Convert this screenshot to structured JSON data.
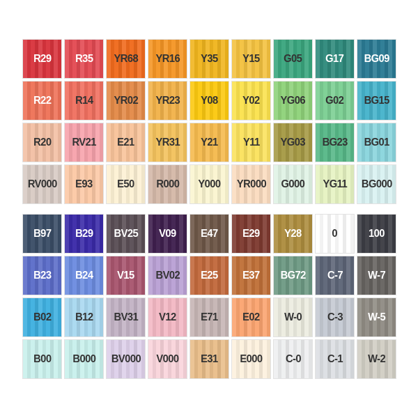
{
  "blocks": [
    {
      "rows": [
        [
          {
            "label": "R29",
            "color": "#d9343d",
            "text": "#ffffff"
          },
          {
            "label": "R35",
            "color": "#e34a52",
            "text": "#ffffff"
          },
          {
            "label": "YR68",
            "color": "#f06a1c",
            "text": "#333333"
          },
          {
            "label": "YR16",
            "color": "#f59625",
            "text": "#333333"
          },
          {
            "label": "Y35",
            "color": "#f0b51e",
            "text": "#333333"
          },
          {
            "label": "Y15",
            "color": "#f4c240",
            "text": "#333333"
          },
          {
            "label": "G05",
            "color": "#3aa67e",
            "text": "#333333"
          },
          {
            "label": "G17",
            "color": "#2f8a7c",
            "text": "#ffffff"
          },
          {
            "label": "BG09",
            "color": "#2a7a93",
            "text": "#ffffff"
          }
        ],
        [
          {
            "label": "R22",
            "color": "#ee7258",
            "text": "#ffffff"
          },
          {
            "label": "R14",
            "color": "#f07060",
            "text": "#333333"
          },
          {
            "label": "YR02",
            "color": "#e38a48",
            "text": "#333333"
          },
          {
            "label": "YR23",
            "color": "#f2b24a",
            "text": "#333333"
          },
          {
            "label": "Y08",
            "color": "#fcc910",
            "text": "#333333"
          },
          {
            "label": "Y02",
            "color": "#fbe24e",
            "text": "#333333"
          },
          {
            "label": "YG06",
            "color": "#8fd27a",
            "text": "#333333"
          },
          {
            "label": "G02",
            "color": "#7ccf93",
            "text": "#333333"
          },
          {
            "label": "BG15",
            "color": "#46b3cb",
            "text": "#333333"
          }
        ],
        [
          {
            "label": "R20",
            "color": "#f3c0a4",
            "text": "#333333"
          },
          {
            "label": "RV21",
            "color": "#f7a3ac",
            "text": "#333333"
          },
          {
            "label": "E21",
            "color": "#f8c39a",
            "text": "#333333"
          },
          {
            "label": "YR31",
            "color": "#f3c25d",
            "text": "#333333"
          },
          {
            "label": "Y21",
            "color": "#f5ba4e",
            "text": "#333333"
          },
          {
            "label": "Y11",
            "color": "#fbe25e",
            "text": "#333333"
          },
          {
            "label": "YG03",
            "color": "#a69a45",
            "text": "#333333"
          },
          {
            "label": "BG23",
            "color": "#57b888",
            "text": "#333333"
          },
          {
            "label": "BG01",
            "color": "#8ad5dd",
            "text": "#333333"
          }
        ],
        [
          {
            "label": "RV000",
            "color": "#d8cbc4",
            "text": "#333333"
          },
          {
            "label": "E93",
            "color": "#fcc9a6",
            "text": "#333333"
          },
          {
            "label": "E50",
            "color": "#fdf1d4",
            "text": "#333333"
          },
          {
            "label": "R000",
            "color": "#d4b8a8",
            "text": "#333333"
          },
          {
            "label": "Y000",
            "color": "#fbf5d0",
            "text": "#333333"
          },
          {
            "label": "YR000",
            "color": "#fbdcc0",
            "text": "#333333"
          },
          {
            "label": "G000",
            "color": "#e0f3e5",
            "text": "#333333"
          },
          {
            "label": "YG11",
            "color": "#e6f3c2",
            "text": "#333333"
          },
          {
            "label": "BG000",
            "color": "#d9f2f2",
            "text": "#333333"
          }
        ]
      ]
    },
    {
      "rows": [
        [
          {
            "label": "B97",
            "color": "#3a4d66",
            "text": "#ffffff"
          },
          {
            "label": "B29",
            "color": "#3a2aa8",
            "text": "#ffffff"
          },
          {
            "label": "BV25",
            "color": "#5a4e55",
            "text": "#ffffff"
          },
          {
            "label": "V09",
            "color": "#3f1f4e",
            "text": "#ffffff"
          },
          {
            "label": "E47",
            "color": "#6e5748",
            "text": "#ffffff"
          },
          {
            "label": "E29",
            "color": "#7e3a30",
            "text": "#ffffff"
          },
          {
            "label": "Y28",
            "color": "#ad8d3e",
            "text": "#ffffff"
          },
          {
            "label": "0",
            "color": "#ffffff",
            "text": "#333333"
          },
          {
            "label": "100",
            "color": "#3c3d44",
            "text": "#ffffff"
          }
        ],
        [
          {
            "label": "B23",
            "color": "#5c6dc9",
            "text": "#ffffff"
          },
          {
            "label": "B24",
            "color": "#6c8ce0",
            "text": "#ffffff"
          },
          {
            "label": "V15",
            "color": "#a8556e",
            "text": "#ffffff"
          },
          {
            "label": "BV02",
            "color": "#b9a0d4",
            "text": "#333333"
          },
          {
            "label": "E25",
            "color": "#c2693c",
            "text": "#ffffff"
          },
          {
            "label": "E37",
            "color": "#c07038",
            "text": "#ffffff"
          },
          {
            "label": "BG72",
            "color": "#6e9a84",
            "text": "#ffffff"
          },
          {
            "label": "C-7",
            "color": "#5d6577",
            "text": "#ffffff"
          },
          {
            "label": "W-7",
            "color": "#666360",
            "text": "#ffffff"
          }
        ],
        [
          {
            "label": "B02",
            "color": "#3fb0e0",
            "text": "#333333"
          },
          {
            "label": "B12",
            "color": "#a9d8f0",
            "text": "#333333"
          },
          {
            "label": "BV31",
            "color": "#c3b3c5",
            "text": "#333333"
          },
          {
            "label": "V12",
            "color": "#f3b8c4",
            "text": "#333333"
          },
          {
            "label": "E71",
            "color": "#c6b5b4",
            "text": "#333333"
          },
          {
            "label": "E02",
            "color": "#fba470",
            "text": "#333333"
          },
          {
            "label": "W-0",
            "color": "#ecece0",
            "text": "#333333"
          },
          {
            "label": "C-3",
            "color": "#c5cad3",
            "text": "#333333"
          },
          {
            "label": "W-5",
            "color": "#908c84",
            "text": "#ffffff"
          }
        ],
        [
          {
            "label": "B00",
            "color": "#c9f0ec",
            "text": "#333333"
          },
          {
            "label": "B000",
            "color": "#c8f0ec",
            "text": "#333333"
          },
          {
            "label": "BV000",
            "color": "#ded0ea",
            "text": "#333333"
          },
          {
            "label": "V000",
            "color": "#f9d4db",
            "text": "#333333"
          },
          {
            "label": "E31",
            "color": "#e9be8a",
            "text": "#333333"
          },
          {
            "label": "E000",
            "color": "#fdf1de",
            "text": "#333333"
          },
          {
            "label": "C-0",
            "color": "#eeeff0",
            "text": "#333333"
          },
          {
            "label": "C-1",
            "color": "#dcdfe3",
            "text": "#333333"
          },
          {
            "label": "W-2",
            "color": "#d1cec4",
            "text": "#333333"
          }
        ]
      ]
    }
  ]
}
